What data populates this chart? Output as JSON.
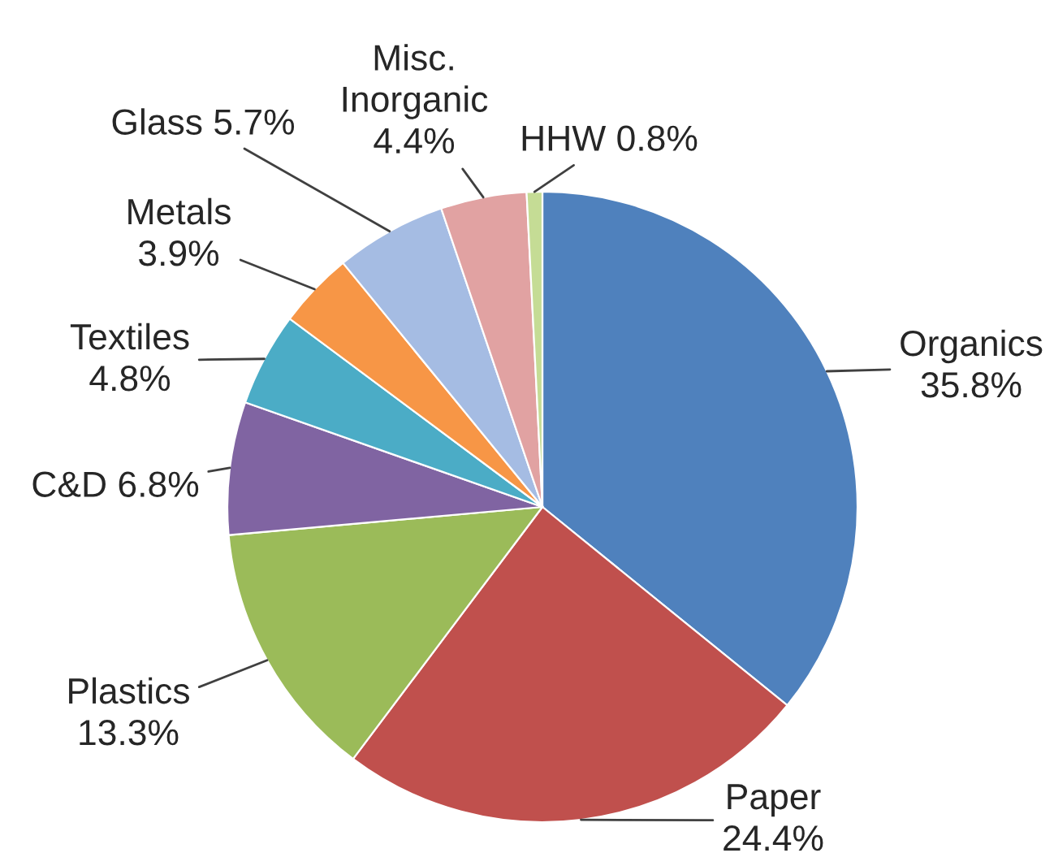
{
  "chart_data": {
    "type": "pie",
    "categories": [
      "Organics",
      "Paper",
      "Plastics",
      "C&D",
      "Textiles",
      "Metals",
      "Glass",
      "Misc. Inorganic",
      "HHW"
    ],
    "values": [
      35.8,
      24.4,
      13.3,
      6.8,
      4.8,
      3.9,
      5.7,
      4.4,
      0.8
    ],
    "value_labels": [
      "35.8%",
      "24.4%",
      "13.3%",
      "6.8%",
      "4.8%",
      "3.9%",
      "5.7%",
      "4.4%",
      "0.8%"
    ],
    "colors": [
      "#4f81bd",
      "#c0504d",
      "#9bbb59",
      "#8064a2",
      "#4bacc6",
      "#f79646",
      "#a5bce3",
      "#e1a2a2",
      "#c5dc95"
    ]
  }
}
